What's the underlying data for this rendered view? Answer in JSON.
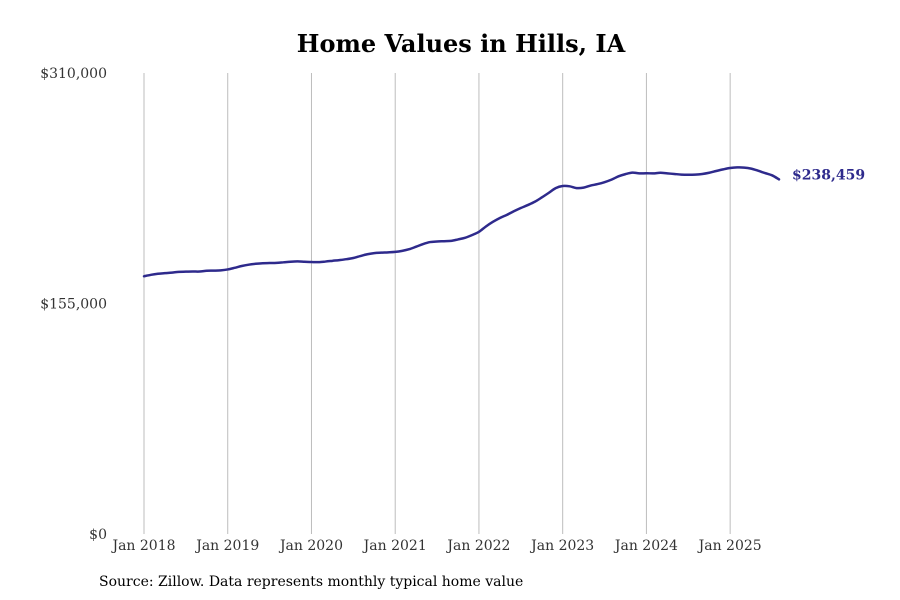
{
  "chart_data": {
    "type": "line",
    "title": "Home Values in Hills, IA",
    "source": "Source: Zillow. Data represents monthly typical home value",
    "xlabel": "",
    "ylabel": "",
    "ylim": [
      0,
      310000
    ],
    "xlim": [
      "2018-01",
      "2025-08"
    ],
    "y_ticks": [
      0,
      155000,
      310000
    ],
    "y_tick_labels": [
      "$0",
      "$155,000",
      "$310,000"
    ],
    "x_ticks": [
      "2018-01",
      "2019-01",
      "2020-01",
      "2021-01",
      "2022-01",
      "2023-01",
      "2024-01",
      "2025-01"
    ],
    "x_tick_labels": [
      "Jan 2018",
      "Jan 2019",
      "Jan 2020",
      "Jan 2021",
      "Jan 2022",
      "Jan 2023",
      "Jan 2024",
      "Jan 2025"
    ],
    "grid": "vertical",
    "line_color": "#2e2a8c",
    "end_label": "$238,459",
    "series": [
      {
        "x": [
          "2018-01",
          "2018-02",
          "2018-03",
          "2018-04",
          "2018-05",
          "2018-06",
          "2018-07",
          "2018-08",
          "2018-09",
          "2018-10",
          "2018-11",
          "2018-12",
          "2019-01",
          "2019-02",
          "2019-03",
          "2019-04",
          "2019-05",
          "2019-06",
          "2019-07",
          "2019-08",
          "2019-09",
          "2019-10",
          "2019-11",
          "2019-12",
          "2020-01",
          "2020-02",
          "2020-03",
          "2020-04",
          "2020-05",
          "2020-06",
          "2020-07",
          "2020-08",
          "2020-09",
          "2020-10",
          "2020-11",
          "2020-12",
          "2021-01",
          "2021-02",
          "2021-03",
          "2021-04",
          "2021-05",
          "2021-06",
          "2021-07",
          "2021-08",
          "2021-09",
          "2021-10",
          "2021-11",
          "2021-12",
          "2022-01",
          "2022-02",
          "2022-03",
          "2022-04",
          "2022-05",
          "2022-06",
          "2022-07",
          "2022-08",
          "2022-09",
          "2022-10",
          "2022-11",
          "2022-12",
          "2023-01",
          "2023-02",
          "2023-03",
          "2023-04",
          "2023-05",
          "2023-06",
          "2023-07",
          "2023-08",
          "2023-09",
          "2023-10",
          "2023-11",
          "2023-12",
          "2024-01",
          "2024-02",
          "2024-03",
          "2024-04",
          "2024-05",
          "2024-06",
          "2024-07",
          "2024-08",
          "2024-09",
          "2024-10",
          "2024-11",
          "2024-12",
          "2025-01",
          "2025-02",
          "2025-03",
          "2025-04",
          "2025-05",
          "2025-06",
          "2025-07",
          "2025-08"
        ],
        "values": [
          173300,
          174300,
          175000,
          175400,
          175800,
          176300,
          176400,
          176500,
          176500,
          177000,
          177100,
          177300,
          177900,
          179000,
          180200,
          181100,
          181700,
          182100,
          182200,
          182300,
          182700,
          183100,
          183300,
          183100,
          182900,
          182800,
          183200,
          183700,
          184200,
          184800,
          185600,
          186900,
          188100,
          188900,
          189200,
          189400,
          189700,
          190400,
          191500,
          193200,
          195000,
          196300,
          196700,
          196900,
          197100,
          198100,
          199200,
          201000,
          203200,
          206800,
          209900,
          212500,
          214600,
          217000,
          219200,
          221200,
          223400,
          226300,
          229400,
          232600,
          234000,
          233800,
          232600,
          232900,
          234300,
          235300,
          236600,
          238300,
          240500,
          242000,
          243000,
          242500,
          242600,
          242500,
          242900,
          242500,
          242100,
          241700,
          241600,
          241700,
          242100,
          242900,
          244100,
          245200,
          246100,
          246500,
          246400,
          245700,
          244300,
          242700,
          241200,
          238459
        ]
      }
    ]
  }
}
